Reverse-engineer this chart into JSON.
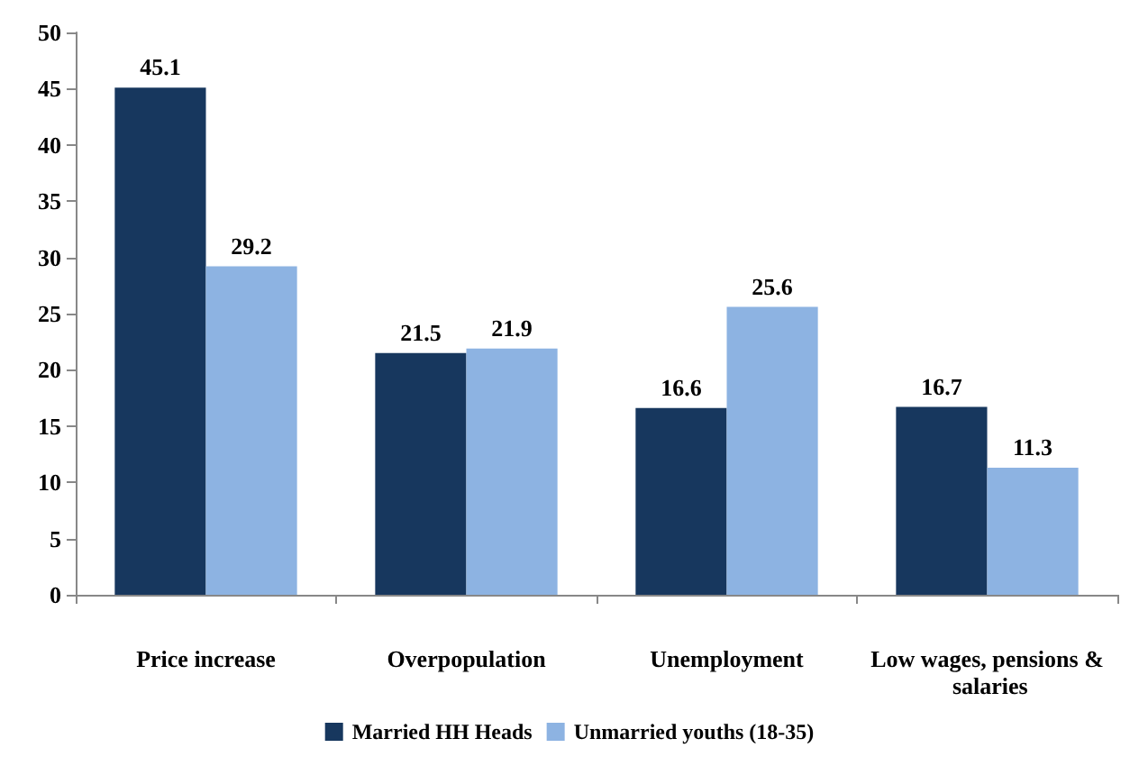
{
  "chart_data": {
    "type": "bar",
    "categories": [
      "Price increase",
      "Overpopulation",
      "Unemployment",
      "Low wages, pensions & salaries"
    ],
    "series": [
      {
        "name": "Married HH Heads",
        "color": "#17375e",
        "values": [
          45.1,
          21.5,
          16.6,
          16.7
        ]
      },
      {
        "name": "Unmarried youths (18-35)",
        "color": "#8db3e2",
        "values": [
          29.2,
          21.9,
          25.6,
          11.3
        ]
      }
    ],
    "ylim": [
      0,
      50
    ],
    "yticks": [
      0,
      5,
      10,
      15,
      20,
      25,
      30,
      35,
      40,
      45,
      50
    ],
    "grid": false,
    "legend": "bottom",
    "data_labels": true
  }
}
